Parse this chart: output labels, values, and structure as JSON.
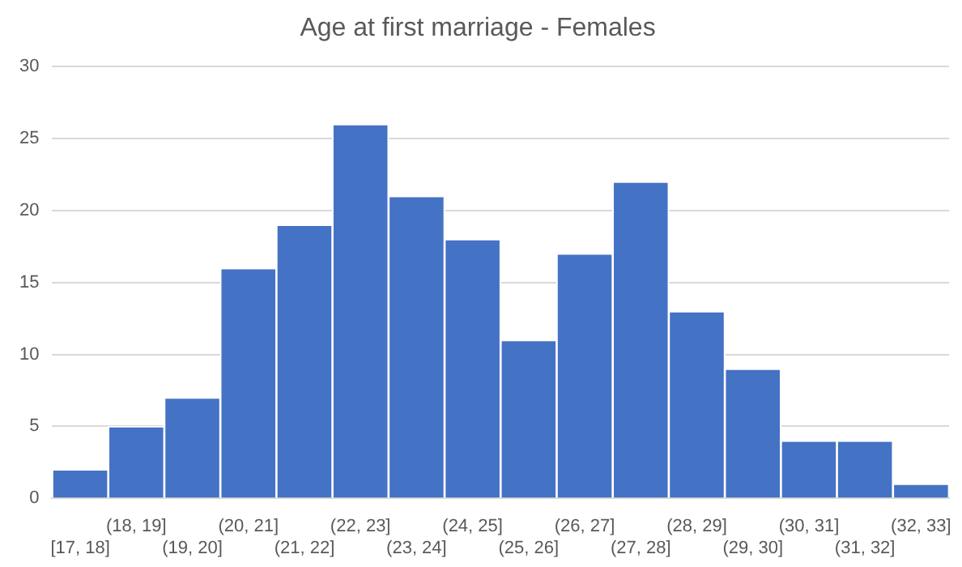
{
  "chart_data": {
    "type": "bar",
    "title": "Age at first marriage - Females",
    "categories": [
      "[17, 18]",
      "(18, 19]",
      "(19, 20]",
      "(20, 21]",
      "(21, 22]",
      "(22, 23]",
      "(23, 24]",
      "(24, 25]",
      "(25, 26]",
      "(26, 27]",
      "(27, 28]",
      "(28, 29]",
      "(29, 30]",
      "(30, 31]",
      "(31, 32]",
      "(32, 33]"
    ],
    "values": [
      2,
      5,
      7,
      16,
      19,
      26,
      21,
      18,
      11,
      17,
      22,
      13,
      9,
      4,
      4,
      1
    ],
    "color": "#4472c4",
    "ylim": [
      0,
      30
    ],
    "yticks": [
      0,
      5,
      10,
      15,
      20,
      25,
      30
    ],
    "grid": "y"
  }
}
